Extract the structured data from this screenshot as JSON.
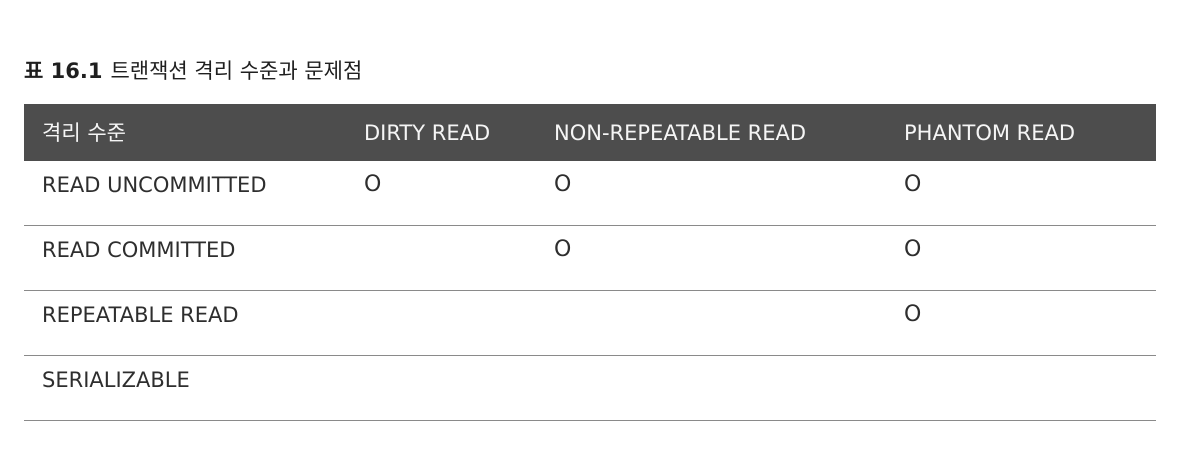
{
  "caption": {
    "label": "표 16.1",
    "text": "트랜잭션 격리 수준과 문제점"
  },
  "table": {
    "columns": [
      "격리 수준",
      "DIRTY READ",
      "NON-REPEATABLE READ",
      "PHANTOM READ"
    ],
    "rows": [
      {
        "level": "READ UNCOMMITTED",
        "dirty": "O",
        "nonrep": "O",
        "phantom": "O"
      },
      {
        "level": "READ COMMITTED",
        "dirty": "",
        "nonrep": "O",
        "phantom": "O"
      },
      {
        "level": "REPEATABLE READ",
        "dirty": "",
        "nonrep": "",
        "phantom": "O"
      },
      {
        "level": "SERIALIZABLE",
        "dirty": "",
        "nonrep": "",
        "phantom": ""
      }
    ]
  }
}
